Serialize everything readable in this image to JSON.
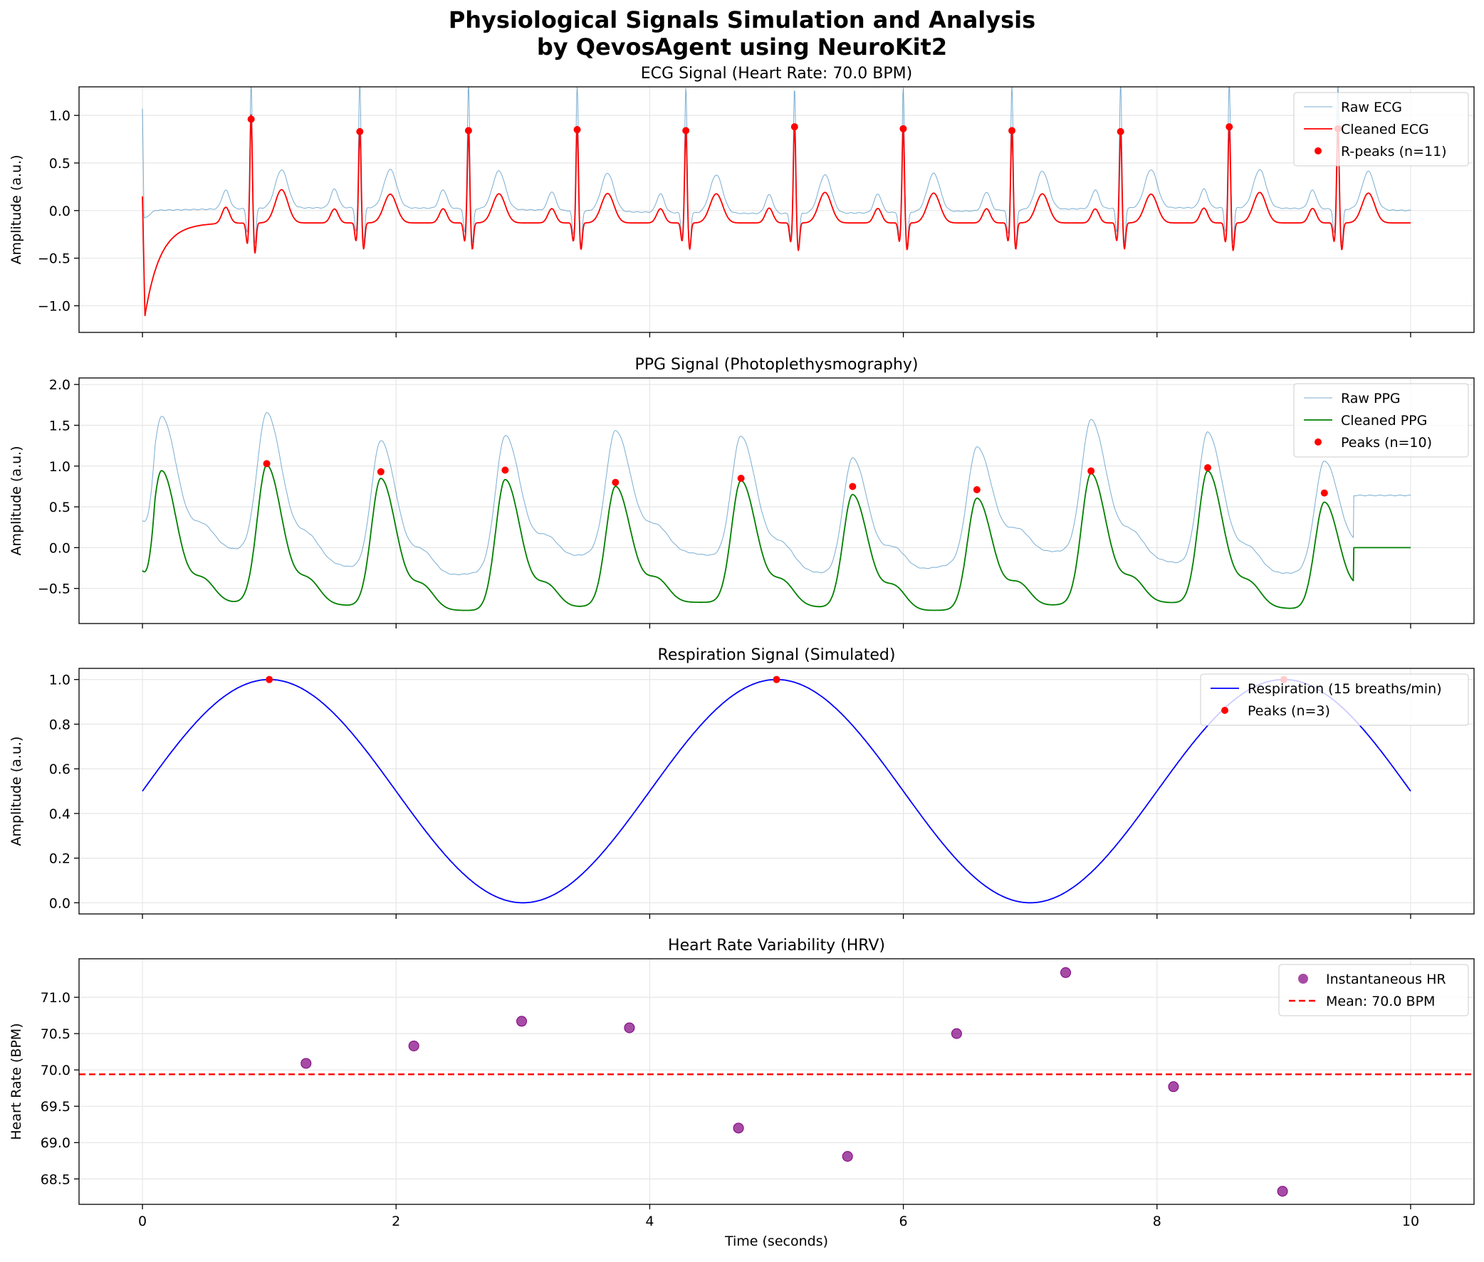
{
  "figure": {
    "title_line1": "Physiological Signals Simulation and Analysis",
    "title_line2": "by QevosAgent using NeuroKit2"
  },
  "chart_data": [
    {
      "type": "line",
      "title": "ECG Signal (Heart Rate: 70.0 BPM)",
      "xlabel": "",
      "ylabel": "Amplitude (a.u.)",
      "xlim": [
        -0.5,
        10.5
      ],
      "ylim": [
        -1.28,
        1.3
      ],
      "yticks": [
        -1.0,
        -0.5,
        0.0,
        0.5,
        1.0
      ],
      "ytick_labels": [
        "−1.0",
        "−0.5",
        "0.0",
        "0.5",
        "1.0"
      ],
      "grid": true,
      "legend_position": "top-right",
      "series": [
        {
          "name": "Raw ECG",
          "color": "#1f77b4",
          "kind": "raw"
        },
        {
          "name": "Cleaned ECG",
          "color": "#ff0000",
          "kind": "cleaned"
        },
        {
          "name": "R-peaks (n=11)",
          "color": "#ff0000",
          "kind": "peaks",
          "x": [
            0.857,
            1.714,
            2.571,
            3.428,
            4.285,
            5.142,
            5.999,
            6.856,
            7.713,
            8.57,
            9.427
          ],
          "y": [
            0.96,
            0.83,
            0.84,
            0.85,
            0.84,
            0.88,
            0.86,
            0.84,
            0.83,
            0.88,
            0.86
          ]
        }
      ]
    },
    {
      "type": "line",
      "title": "PPG Signal (Photoplethysmography)",
      "xlabel": "",
      "ylabel": "Amplitude (a.u.)",
      "xlim": [
        -0.5,
        10.5
      ],
      "ylim": [
        -0.93,
        2.08
      ],
      "yticks": [
        -0.5,
        0.0,
        0.5,
        1.0,
        1.5,
        2.0
      ],
      "ytick_labels": [
        "−0.5",
        "0.0",
        "0.5",
        "1.0",
        "1.5",
        "2.0"
      ],
      "grid": true,
      "legend_position": "top-right",
      "series": [
        {
          "name": "Raw PPG",
          "color": "#1f77b4",
          "kind": "raw"
        },
        {
          "name": "Cleaned PPG",
          "color": "#008000",
          "kind": "cleaned"
        },
        {
          "name": "Peaks (n=10)",
          "color": "#ff0000",
          "kind": "peaks",
          "x": [
            0.98,
            1.88,
            2.86,
            3.73,
            4.72,
            5.6,
            6.58,
            7.48,
            8.4,
            9.32
          ],
          "y": [
            1.03,
            0.93,
            0.95,
            0.8,
            0.85,
            0.75,
            0.71,
            0.94,
            0.98,
            0.67
          ]
        }
      ]
    },
    {
      "type": "line",
      "title": "Respiration Signal (Simulated)",
      "xlabel": "",
      "ylabel": "Amplitude (a.u.)",
      "xlim": [
        -0.5,
        10.5
      ],
      "ylim": [
        -0.05,
        1.05
      ],
      "yticks": [
        0.0,
        0.2,
        0.4,
        0.6,
        0.8,
        1.0
      ],
      "ytick_labels": [
        "0.0",
        "0.2",
        "0.4",
        "0.6",
        "0.8",
        "1.0"
      ],
      "grid": true,
      "legend_position": "top-right",
      "series": [
        {
          "name": "Respiration (15 breaths/min)",
          "color": "#0000ff",
          "kind": "resp",
          "breaths_per_min": 15
        },
        {
          "name": "Peaks (n=3)",
          "color": "#ff0000",
          "kind": "peaks",
          "x": [
            1.0,
            5.0,
            9.0
          ],
          "y": [
            1.0,
            1.0,
            1.0
          ]
        }
      ]
    },
    {
      "type": "scatter",
      "title": "Heart Rate Variability (HRV)",
      "xlabel": "Time (seconds)",
      "ylabel": "Heart Rate (BPM)",
      "xlim": [
        -0.5,
        10.5
      ],
      "ylim": [
        68.15,
        71.53
      ],
      "xticks": [
        0,
        2,
        4,
        6,
        8,
        10
      ],
      "xtick_labels": [
        "0",
        "2",
        "4",
        "6",
        "8",
        "10"
      ],
      "yticks": [
        68.5,
        69.0,
        69.5,
        70.0,
        70.5,
        71.0
      ],
      "ytick_labels": [
        "68.5",
        "69.0",
        "69.5",
        "70.0",
        "70.5",
        "71.0"
      ],
      "grid": true,
      "legend_position": "top-right",
      "series": [
        {
          "name": "Instantaneous HR",
          "color": "#800080",
          "kind": "scatter",
          "x": [
            1.29,
            2.14,
            2.99,
            3.84,
            4.7,
            5.56,
            6.42,
            7.28,
            8.13,
            8.99
          ],
          "y": [
            70.09,
            70.33,
            70.67,
            70.58,
            69.2,
            68.81,
            70.5,
            71.34,
            69.77,
            68.33
          ]
        },
        {
          "name": "Mean: 70.0 BPM",
          "color": "#ff0000",
          "kind": "hline",
          "value": 69.94
        }
      ]
    }
  ]
}
